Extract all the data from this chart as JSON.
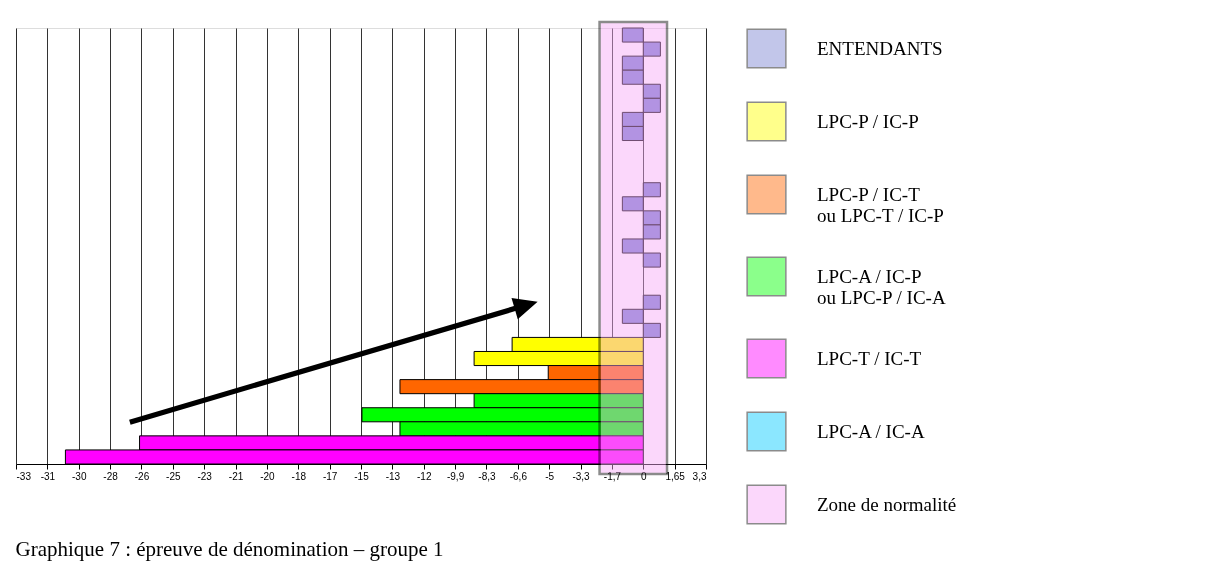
{
  "chart_data": {
    "type": "bar",
    "orientation": "horizontal",
    "title": "Graphique 7 : épreuve de dénomination – groupe 1",
    "categories": [
      null,
      null,
      null,
      null,
      null,
      null,
      null,
      null,
      null,
      null,
      null,
      null,
      null,
      null,
      null,
      null,
      null,
      null,
      null,
      null,
      null,
      null,
      null,
      null,
      null,
      null,
      null,
      null,
      null,
      null,
      null
    ],
    "series": [
      {
        "name": "ENTENDANTS",
        "color": "#7983d1",
        "values": [
          -1.1,
          0.9,
          -1.1,
          -1.1,
          0.9,
          0.9,
          -1.1,
          -1.1,
          null,
          null,
          null,
          0.9,
          -1.1,
          0.9,
          0.9,
          -1.1,
          0.9,
          null,
          null,
          0.9,
          -1.1,
          0.9,
          null,
          null,
          null,
          null,
          null,
          null,
          null,
          null,
          null
        ]
      },
      {
        "name": "LPC-P / IC-P",
        "color": "#ffff00",
        "values": [
          null,
          null,
          null,
          null,
          null,
          null,
          null,
          null,
          null,
          null,
          null,
          null,
          null,
          null,
          null,
          null,
          null,
          null,
          null,
          null,
          null,
          null,
          -6.9,
          -8.9,
          null,
          null,
          null,
          null,
          null,
          null,
          null
        ]
      },
      {
        "name": "LPC-P / IC-T\nou LPC-T / IC-P",
        "color": "#ff6600",
        "values": [
          null,
          null,
          null,
          null,
          null,
          null,
          null,
          null,
          null,
          null,
          null,
          null,
          null,
          null,
          null,
          null,
          null,
          null,
          null,
          null,
          null,
          null,
          null,
          null,
          -5.0,
          -12.8,
          null,
          null,
          null,
          null,
          null
        ]
      },
      {
        "name": "LPC-A / IC-P\nou LPC-P / IC-A",
        "color": "#00ff00",
        "values": [
          null,
          null,
          null,
          null,
          null,
          null,
          null,
          null,
          null,
          null,
          null,
          null,
          null,
          null,
          null,
          null,
          null,
          null,
          null,
          null,
          null,
          null,
          null,
          null,
          null,
          null,
          -8.9,
          -14.8,
          -12.8,
          null,
          null
        ]
      },
      {
        "name": "LPC-T / IC-T",
        "color": "#ff00ff",
        "values": [
          null,
          null,
          null,
          null,
          null,
          null,
          null,
          null,
          null,
          null,
          null,
          null,
          null,
          null,
          null,
          null,
          null,
          null,
          null,
          null,
          null,
          null,
          null,
          null,
          null,
          null,
          null,
          null,
          null,
          -26.5,
          -30.4
        ]
      },
      {
        "name": "LPC-A / IC-A",
        "color": "#00ccff",
        "values": [
          null,
          null,
          null,
          null,
          null,
          null,
          null,
          null,
          null,
          null,
          null,
          null,
          null,
          null,
          null,
          null,
          null,
          null,
          null,
          null,
          null,
          null,
          null,
          null,
          null,
          null,
          null,
          null,
          null,
          null,
          null
        ]
      }
    ],
    "bands": [
      {
        "axis": "x",
        "from": -2.3,
        "to": 1.25,
        "label": "Zone de normalité",
        "color": "#f7a8f7"
      }
    ],
    "xlim": [
      -33,
      3.3
    ],
    "xticks": [
      -33,
      {
        "value": -31.35,
        "label": "-31"
      },
      {
        "value": -29.7,
        "label": "-30"
      },
      {
        "value": -28.05,
        "label": "-28"
      },
      {
        "value": -26.4,
        "label": "-26"
      },
      {
        "value": -24.75,
        "label": "-25"
      },
      {
        "value": -23.1,
        "label": "-23"
      },
      {
        "value": -21.45,
        "label": "-21"
      },
      {
        "value": -19.8,
        "label": "-20"
      },
      {
        "value": -18.15,
        "label": "-18"
      },
      {
        "value": -16.5,
        "label": "-17"
      },
      {
        "value": -14.85,
        "label": "-15"
      },
      {
        "value": -13.2,
        "label": "-13"
      },
      {
        "value": -11.55,
        "label": "-12"
      },
      {
        "value": -9.9,
        "label": "-9,9"
      },
      {
        "value": -8.25,
        "label": "-8,3"
      },
      {
        "value": -6.6,
        "label": "-6,6"
      },
      {
        "value": -4.95,
        "label": "-5"
      },
      {
        "value": -3.3,
        "label": "-3,3"
      },
      {
        "value": -1.65,
        "label": "-1,7"
      },
      0,
      {
        "value": 1.65,
        "label": "1,65"
      },
      {
        "value": 3.3,
        "label": "3,3"
      }
    ],
    "grid": "x",
    "tick_labels": "x",
    "legend": "right"
  }
}
